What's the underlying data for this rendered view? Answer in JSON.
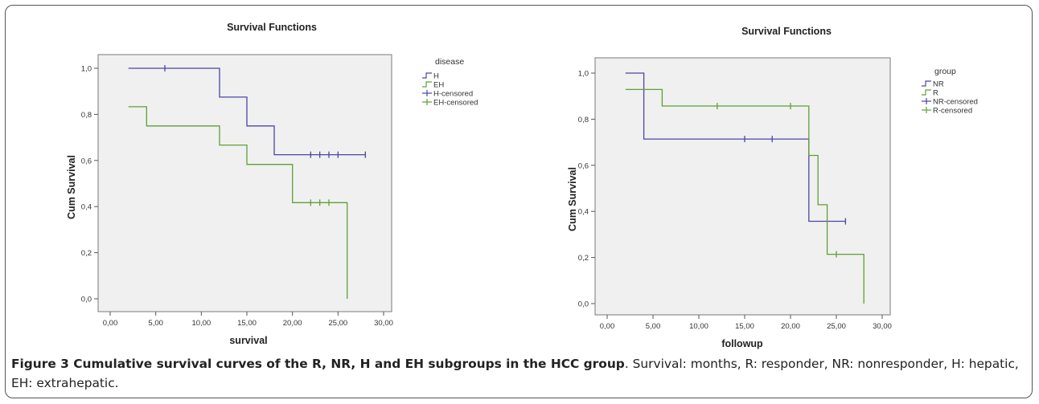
{
  "caption": {
    "label": "Figure 3 Cumulative survival curves of the R, NR, H and EH subgroups in the HCC group",
    "text": ". Survival: months, R: responder, NR: nonresponder, H: hepatic, EH: extrahepatic."
  },
  "chart_data": [
    {
      "type": "line",
      "title": "Survival Functions",
      "xlabel": "survival",
      "ylabel": "Cum Survival",
      "xlim": [
        0,
        30
      ],
      "ylim": [
        0,
        1
      ],
      "x_ticks": [
        "0,00",
        "5,00",
        "10,00",
        "15,00",
        "20,00",
        "25,00",
        "30,00"
      ],
      "y_ticks": [
        "0,0",
        "0,2",
        "0,4",
        "0,6",
        "0,8",
        "1,0"
      ],
      "legend_title": "disease",
      "legend_position": "right",
      "legend": [
        "H",
        "EH",
        "H-censored",
        "EH-censored"
      ],
      "series": [
        {
          "name": "H",
          "color": "#4B44A8",
          "steps": [
            [
              2,
              1.0
            ],
            [
              12,
              1.0
            ],
            [
              12,
              0.875
            ],
            [
              15,
              0.875
            ],
            [
              15,
              0.75
            ],
            [
              18,
              0.75
            ],
            [
              18,
              0.625
            ],
            [
              28,
              0.625
            ]
          ],
          "censored": [
            [
              6,
              1.0
            ],
            [
              22,
              0.625
            ],
            [
              23,
              0.625
            ],
            [
              24,
              0.625
            ],
            [
              25,
              0.625
            ],
            [
              28,
              0.625
            ]
          ]
        },
        {
          "name": "EH",
          "color": "#5EA134",
          "steps": [
            [
              2,
              0.833
            ],
            [
              4,
              0.833
            ],
            [
              4,
              0.75
            ],
            [
              12,
              0.75
            ],
            [
              12,
              0.667
            ],
            [
              15,
              0.667
            ],
            [
              15,
              0.583
            ],
            [
              20,
              0.583
            ],
            [
              20,
              0.417
            ],
            [
              26,
              0.417
            ],
            [
              26,
              0.0
            ]
          ],
          "censored": [
            [
              22,
              0.417
            ],
            [
              23,
              0.417
            ],
            [
              24,
              0.417
            ]
          ]
        }
      ]
    },
    {
      "type": "line",
      "title": "Survival Functions",
      "xlabel": "followup",
      "ylabel": "Cum Survival",
      "xlim": [
        0,
        30
      ],
      "ylim": [
        0,
        1
      ],
      "x_ticks": [
        "0,00",
        "5,00",
        "10,00",
        "15,00",
        "20,00",
        "25,00",
        "30,00"
      ],
      "y_ticks": [
        "0,0",
        "0,2",
        "0,4",
        "0,6",
        "0,8",
        "1,0"
      ],
      "legend_title": "group",
      "legend_position": "right",
      "legend": [
        "NR",
        "R",
        "NR-censored",
        "R-censored"
      ],
      "series": [
        {
          "name": "NR",
          "color": "#4B44A8",
          "steps": [
            [
              2,
              1.0
            ],
            [
              4,
              1.0
            ],
            [
              4,
              0.714
            ],
            [
              22,
              0.714
            ],
            [
              22,
              0.357
            ],
            [
              26,
              0.357
            ]
          ],
          "censored": [
            [
              15,
              0.714
            ],
            [
              18,
              0.714
            ],
            [
              26,
              0.357
            ]
          ]
        },
        {
          "name": "R",
          "color": "#5EA134",
          "steps": [
            [
              2,
              0.929
            ],
            [
              6,
              0.929
            ],
            [
              6,
              0.857
            ],
            [
              22,
              0.857
            ],
            [
              22,
              0.643
            ],
            [
              23,
              0.643
            ],
            [
              23,
              0.429
            ],
            [
              24,
              0.429
            ],
            [
              24,
              0.214
            ],
            [
              28,
              0.214
            ],
            [
              28,
              0.0
            ]
          ],
          "censored": [
            [
              12,
              0.857
            ],
            [
              20,
              0.857
            ],
            [
              25,
              0.214
            ]
          ]
        }
      ]
    }
  ]
}
